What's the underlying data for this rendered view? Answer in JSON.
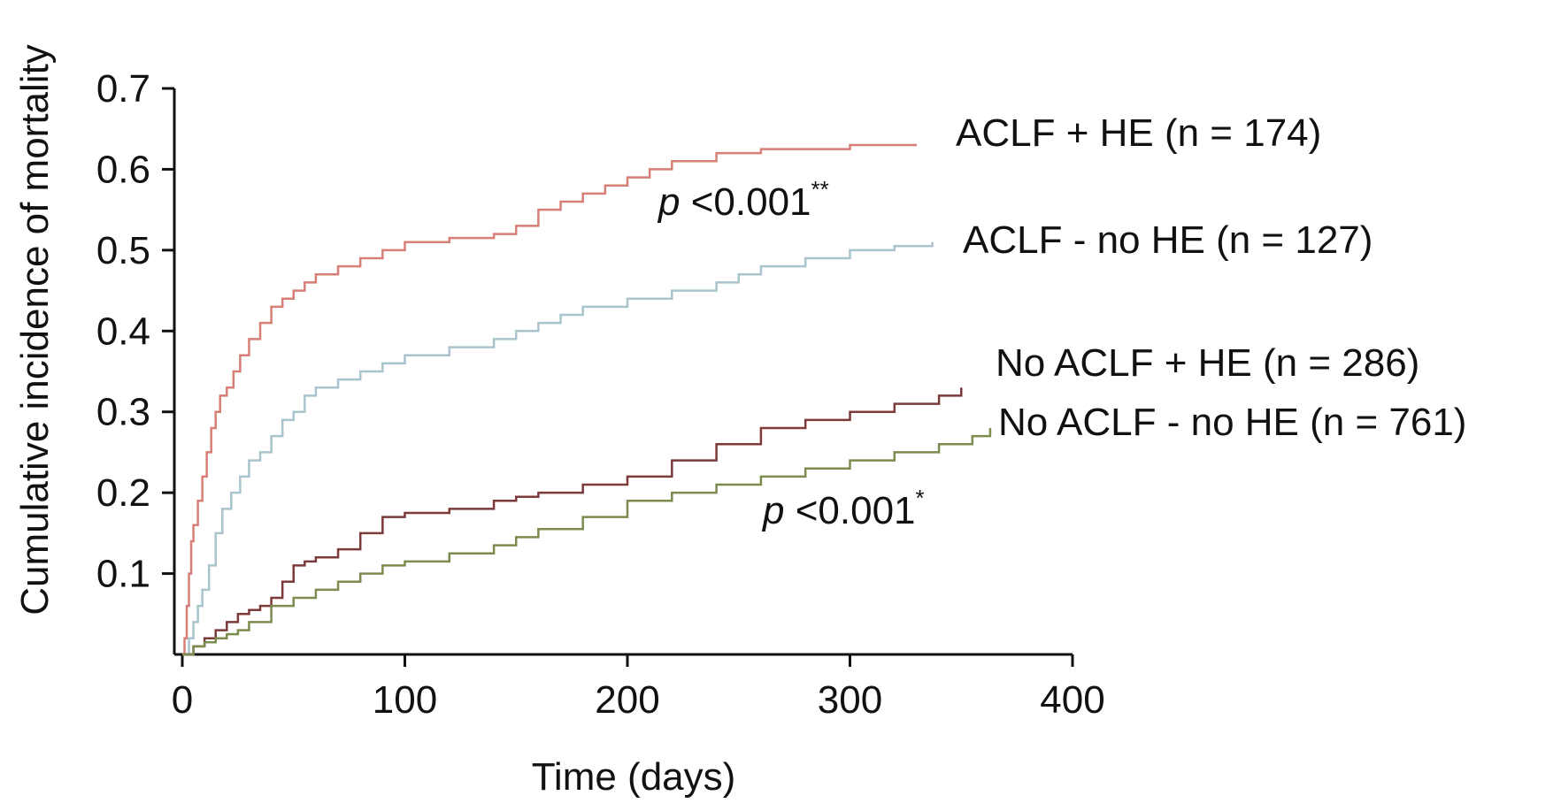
{
  "chart_data": {
    "type": "line",
    "step": true,
    "xlabel": "Time (days)",
    "ylabel": "Cumulative incidence of mortality",
    "xlim": [
      0,
      400
    ],
    "ylim": [
      0,
      0.7
    ],
    "xticks": [
      0,
      100,
      200,
      300,
      400
    ],
    "yticks": [
      0.1,
      0.2,
      0.3,
      0.4,
      0.5,
      0.6,
      0.7
    ],
    "xtick_labels": [
      "0",
      "100",
      "200",
      "300",
      "400"
    ],
    "ytick_labels": [
      "0.1",
      "0.2",
      "0.3",
      "0.4",
      "0.5",
      "0.6",
      "0.7"
    ],
    "grid": false,
    "legend": "inline labels at right end of each curve",
    "series": [
      {
        "name": "ACLF + HE (n = 174)",
        "color": "#d77f76",
        "x": [
          0,
          1,
          2,
          3,
          4,
          5,
          7,
          9,
          11,
          13,
          15,
          17,
          20,
          23,
          26,
          30,
          35,
          40,
          45,
          50,
          55,
          60,
          70,
          80,
          90,
          100,
          120,
          140,
          150,
          160,
          170,
          180,
          190,
          200,
          210,
          220,
          240,
          260,
          300,
          330
        ],
        "y": [
          0,
          0.02,
          0.06,
          0.1,
          0.14,
          0.16,
          0.19,
          0.22,
          0.25,
          0.28,
          0.3,
          0.32,
          0.33,
          0.35,
          0.37,
          0.39,
          0.41,
          0.43,
          0.44,
          0.45,
          0.46,
          0.47,
          0.48,
          0.49,
          0.5,
          0.51,
          0.515,
          0.52,
          0.53,
          0.55,
          0.56,
          0.57,
          0.58,
          0.59,
          0.6,
          0.61,
          0.62,
          0.625,
          0.63,
          0.63
        ]
      },
      {
        "name": "ACLF - no HE (n = 127)",
        "color": "#a9c4cc",
        "x": [
          0,
          3,
          5,
          7,
          9,
          12,
          15,
          18,
          22,
          26,
          30,
          35,
          40,
          45,
          50,
          55,
          60,
          70,
          80,
          90,
          100,
          120,
          140,
          150,
          160,
          170,
          180,
          200,
          220,
          240,
          250,
          260,
          280,
          300,
          320,
          337
        ],
        "y": [
          0,
          0.02,
          0.04,
          0.06,
          0.08,
          0.11,
          0.15,
          0.18,
          0.2,
          0.22,
          0.24,
          0.25,
          0.27,
          0.29,
          0.3,
          0.32,
          0.33,
          0.34,
          0.35,
          0.36,
          0.37,
          0.38,
          0.39,
          0.4,
          0.41,
          0.42,
          0.43,
          0.44,
          0.45,
          0.46,
          0.47,
          0.48,
          0.49,
          0.5,
          0.505,
          0.51
        ]
      },
      {
        "name": "No ACLF + HE (n = 286)",
        "color": "#7c3a3b",
        "x": [
          0,
          5,
          10,
          15,
          20,
          25,
          30,
          35,
          40,
          45,
          50,
          55,
          60,
          70,
          80,
          90,
          100,
          120,
          140,
          150,
          160,
          180,
          200,
          220,
          240,
          260,
          280,
          300,
          320,
          340,
          350
        ],
        "y": [
          0,
          0.01,
          0.02,
          0.03,
          0.04,
          0.05,
          0.055,
          0.06,
          0.07,
          0.09,
          0.11,
          0.115,
          0.12,
          0.13,
          0.15,
          0.17,
          0.175,
          0.18,
          0.19,
          0.195,
          0.2,
          0.21,
          0.22,
          0.24,
          0.26,
          0.28,
          0.29,
          0.3,
          0.31,
          0.32,
          0.33
        ]
      },
      {
        "name": "No ACLF - no HE (n = 761)",
        "color": "#7b8c4e",
        "x": [
          0,
          5,
          10,
          15,
          20,
          25,
          30,
          40,
          50,
          60,
          70,
          80,
          90,
          100,
          120,
          140,
          150,
          160,
          180,
          200,
          220,
          240,
          260,
          280,
          300,
          320,
          340,
          355,
          363
        ],
        "y": [
          0,
          0.01,
          0.015,
          0.02,
          0.025,
          0.03,
          0.04,
          0.06,
          0.07,
          0.08,
          0.09,
          0.1,
          0.11,
          0.115,
          0.125,
          0.135,
          0.145,
          0.155,
          0.17,
          0.19,
          0.2,
          0.21,
          0.22,
          0.23,
          0.24,
          0.25,
          0.26,
          0.27,
          0.28
        ]
      }
    ],
    "annotations": [
      {
        "p_label": "p",
        "text": " <0.001",
        "sup": "**"
      },
      {
        "p_label": "p",
        "text": " <0.001",
        "sup": "*"
      }
    ]
  }
}
